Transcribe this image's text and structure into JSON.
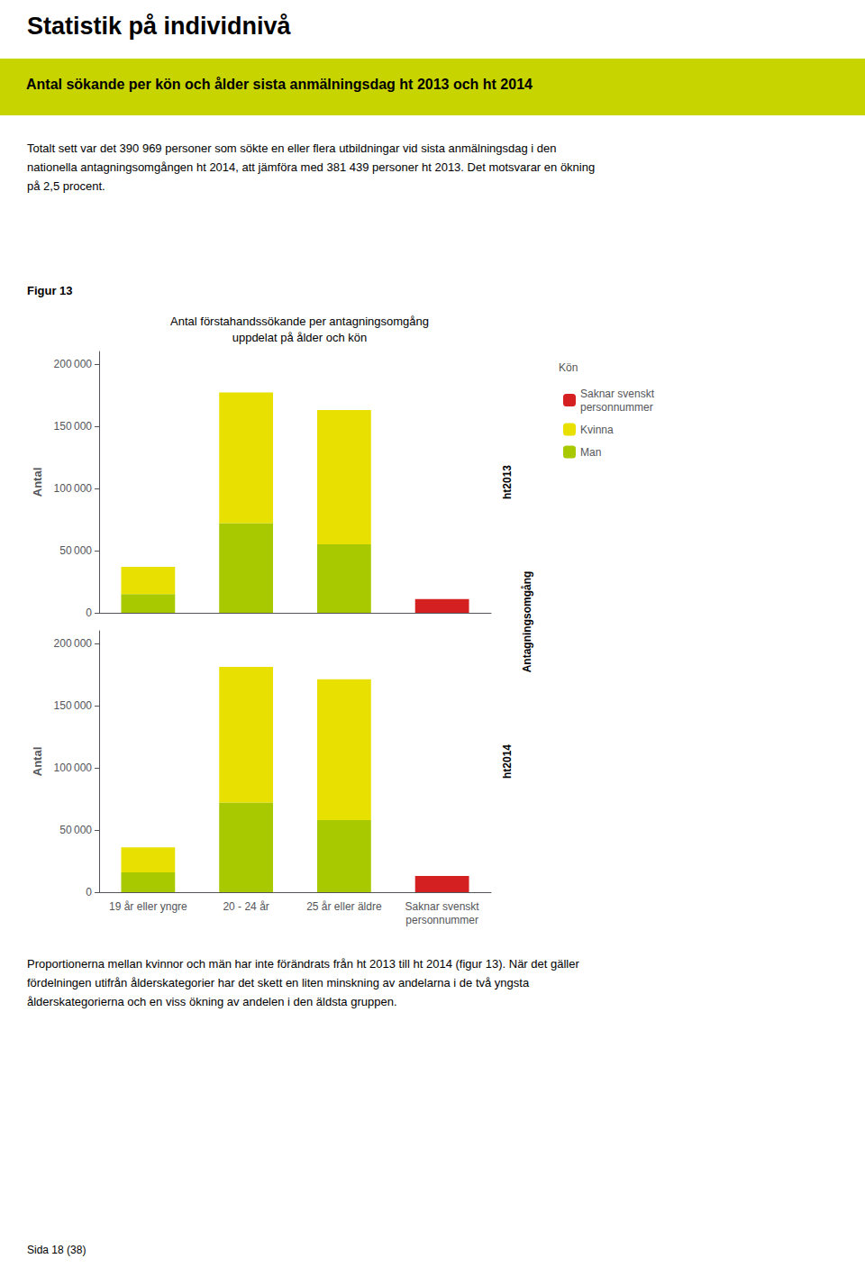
{
  "page_title": "Statistik på individnivå",
  "section_title": "Antal sökande per kön och ålder sista anmälningsdag ht 2013 och ht 2014",
  "section_color": "#c8d400",
  "intro_text": "Totalt sett var det 390 969 personer som sökte en eller flera utbildningar vid sista anmälningsdag i den\nnationella antagningsomgången ht 2014, att jämföra med 381 439 personer ht 2013. Det motsvarar en ökning\npå 2,5 procent.",
  "figure_label": "Figur 13",
  "bottom_text": "Proportionerna mellan kvinnor och män har inte förändrats från ht 2013 till ht 2014 (figur 13). När det gäller\nfördelningen utifrån ålderskategorier har det skett en liten minskning av andelarna i de två yngsta\nålderskategorierna och en viss ökning av andelen i den äldsta gruppen.",
  "footer_text": "Sida 18 (38)",
  "group_label": "Antagningsomgång",
  "chart_data": [
    {
      "type": "bar",
      "title": "Antal förstahandssökande per antagningsomgång\nuppdelat på ålder och kön",
      "panel_label": "ht2013",
      "ylabel": "Antal",
      "categories": [
        "19 år eller yngre",
        "20 - 24 år",
        "25 år eller äldre",
        "Saknar svenskt\npersonnummer"
      ],
      "series": [
        {
          "name": "Man",
          "color": "#a8c800",
          "values": [
            15000,
            72000,
            55000,
            0
          ]
        },
        {
          "name": "Kvinna",
          "color": "#e8e000",
          "values": [
            22000,
            105000,
            108000,
            0
          ]
        },
        {
          "name": "Saknar svenskt\npersonnummer",
          "color": "#d42020",
          "values": [
            0,
            0,
            0,
            11000
          ]
        }
      ],
      "ylim": [
        0,
        210000
      ],
      "yticks": [
        0,
        {
          "value": 50000,
          "label": "50 000"
        },
        {
          "value": 100000,
          "label": "100 000"
        },
        {
          "value": 150000,
          "label": "150 000"
        },
        {
          "value": 200000,
          "label": "200 000"
        }
      ],
      "stacked": true,
      "grid": false,
      "legend": "right",
      "legend_title": "Kön",
      "tick_labels": "y"
    },
    {
      "type": "bar",
      "panel_label": "ht2014",
      "ylabel": "Antal",
      "categories": [
        "19 år eller yngre",
        "20 - 24 år",
        "25 år eller äldre",
        "Saknar svenskt\npersonnummer"
      ],
      "series": [
        {
          "name": "Man",
          "color": "#a8c800",
          "values": [
            16000,
            72000,
            58000,
            0
          ]
        },
        {
          "name": "Kvinna",
          "color": "#e8e000",
          "values": [
            20000,
            109000,
            113000,
            0
          ]
        },
        {
          "name": "Saknar svenskt\npersonnummer",
          "color": "#d42020",
          "values": [
            0,
            0,
            0,
            13000
          ]
        }
      ],
      "ylim": [
        0,
        210000
      ],
      "yticks": [
        0,
        {
          "value": 50000,
          "label": "50 000"
        },
        {
          "value": 100000,
          "label": "100 000"
        },
        {
          "value": 150000,
          "label": "150 000"
        },
        {
          "value": 200000,
          "label": "200 000"
        }
      ],
      "stacked": true,
      "grid": false
    }
  ]
}
